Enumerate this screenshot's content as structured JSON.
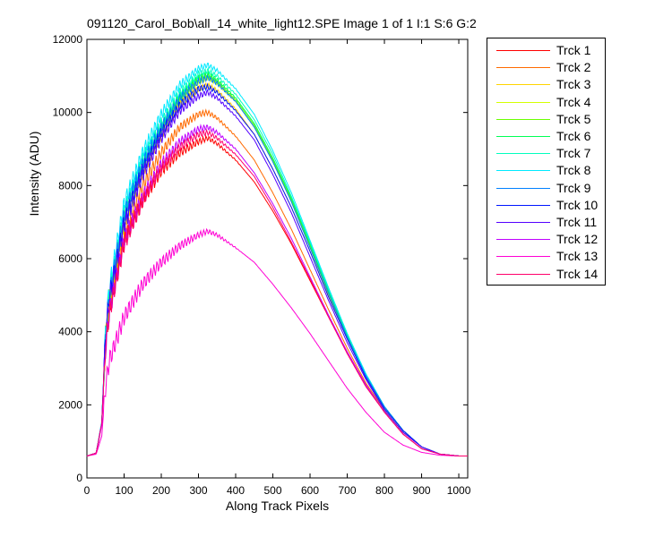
{
  "chart_data": {
    "type": "line",
    "title": "091120_Carol_Bob\\all_14_white_light12.SPE  Image 1 of 1  I:1  S:6  G:2",
    "xlabel": "Along Track Pixels",
    "ylabel": "Intensity (ADU)",
    "xlim": [
      0,
      1024
    ],
    "ylim": [
      0,
      12000
    ],
    "x_ticks": [
      "0",
      "100",
      "200",
      "300",
      "400",
      "500",
      "600",
      "700",
      "800",
      "900",
      "1000"
    ],
    "y_ticks": [
      "0",
      "2000",
      "4000",
      "6000",
      "8000",
      "10000",
      "12000"
    ],
    "legend_position": "outside-right",
    "x": [
      0,
      25,
      40,
      50,
      60,
      100,
      150,
      200,
      250,
      300,
      325,
      350,
      400,
      450,
      500,
      550,
      600,
      650,
      700,
      750,
      800,
      850,
      900,
      950,
      1000,
      1024
    ],
    "series": [
      {
        "name": "Trck 1",
        "color": "#ff0000",
        "values": [
          600,
          680,
          1500,
          3700,
          4600,
          6500,
          7600,
          8400,
          8900,
          9200,
          9300,
          9150,
          8700,
          8100,
          7300,
          6400,
          5400,
          4400,
          3450,
          2550,
          1800,
          1200,
          800,
          650,
          600,
          600
        ]
      },
      {
        "name": "Trck 2",
        "color": "#ff6a00",
        "values": [
          600,
          680,
          1500,
          3700,
          4700,
          6700,
          8000,
          8900,
          9600,
          9950,
          10000,
          9850,
          9350,
          8700,
          7800,
          6800,
          5700,
          4600,
          3550,
          2600,
          1850,
          1250,
          850,
          650,
          600,
          600
        ]
      },
      {
        "name": "Trck 3",
        "color": "#ffd400",
        "values": [
          600,
          680,
          1500,
          3800,
          4900,
          7000,
          8400,
          9400,
          10200,
          10650,
          10750,
          10600,
          10100,
          9400,
          8450,
          7400,
          6200,
          4950,
          3800,
          2750,
          1900,
          1300,
          850,
          650,
          600,
          600
        ]
      },
      {
        "name": "Trck 4",
        "color": "#d4ff00",
        "values": [
          600,
          680,
          1500,
          3850,
          4950,
          7100,
          8500,
          9500,
          10350,
          10850,
          10950,
          10800,
          10300,
          9600,
          8650,
          7550,
          6300,
          5000,
          3850,
          2800,
          1950,
          1300,
          850,
          650,
          600,
          600
        ]
      },
      {
        "name": "Trck 5",
        "color": "#6aff00",
        "values": [
          600,
          680,
          1500,
          3850,
          4950,
          7100,
          8550,
          9550,
          10400,
          10900,
          11000,
          10850,
          10350,
          9650,
          8700,
          7600,
          6350,
          5050,
          3900,
          2800,
          1950,
          1300,
          850,
          650,
          600,
          600
        ]
      },
      {
        "name": "Trck 6",
        "color": "#00ff55",
        "values": [
          600,
          680,
          1500,
          3900,
          5000,
          7200,
          8600,
          9600,
          10450,
          10950,
          11050,
          10900,
          10400,
          9700,
          8750,
          7650,
          6400,
          5100,
          3900,
          2850,
          1950,
          1300,
          850,
          650,
          600,
          600
        ]
      },
      {
        "name": "Trck 7",
        "color": "#00ffbf",
        "values": [
          600,
          680,
          1500,
          3900,
          5050,
          7250,
          8700,
          9700,
          10550,
          11050,
          11150,
          11000,
          10500,
          9800,
          8850,
          7700,
          6450,
          5150,
          3950,
          2850,
          1950,
          1300,
          850,
          650,
          600,
          600
        ]
      },
      {
        "name": "Trck 8",
        "color": "#00eaff",
        "values": [
          600,
          680,
          1550,
          4000,
          5200,
          7500,
          8900,
          9950,
          10750,
          11200,
          11300,
          11150,
          10650,
          9950,
          8950,
          7800,
          6500,
          5200,
          3950,
          2850,
          1950,
          1300,
          850,
          650,
          600,
          600
        ]
      },
      {
        "name": "Trck 9",
        "color": "#0080ff",
        "values": [
          600,
          680,
          1500,
          3900,
          5000,
          7200,
          8600,
          9600,
          10400,
          10850,
          10950,
          10800,
          10300,
          9600,
          8650,
          7550,
          6300,
          5050,
          3850,
          2800,
          1950,
          1300,
          850,
          650,
          600,
          600
        ]
      },
      {
        "name": "Trck 10",
        "color": "#0015ff",
        "values": [
          600,
          680,
          1500,
          3850,
          4950,
          7000,
          8450,
          9450,
          10200,
          10650,
          10700,
          10550,
          10050,
          9400,
          8450,
          7400,
          6200,
          4950,
          3800,
          2750,
          1900,
          1300,
          850,
          650,
          600,
          600
        ]
      },
      {
        "name": "Trck 11",
        "color": "#5500ff",
        "values": [
          600,
          680,
          1500,
          3800,
          4850,
          6900,
          8300,
          9300,
          10050,
          10450,
          10550,
          10400,
          9900,
          9250,
          8300,
          7250,
          6050,
          4850,
          3700,
          2700,
          1850,
          1250,
          850,
          650,
          600,
          600
        ]
      },
      {
        "name": "Trck 12",
        "color": "#bf00ff",
        "values": [
          600,
          680,
          1450,
          3500,
          4500,
          6500,
          7700,
          8600,
          9200,
          9550,
          9600,
          9450,
          9000,
          8350,
          7500,
          6550,
          5500,
          4450,
          3450,
          2550,
          1800,
          1200,
          800,
          650,
          600,
          600
        ]
      },
      {
        "name": "Trck 13",
        "color": "#ff00d4",
        "values": [
          600,
          650,
          1150,
          2500,
          3200,
          4400,
          5300,
          5900,
          6350,
          6650,
          6750,
          6650,
          6300,
          5900,
          5300,
          4650,
          3950,
          3200,
          2450,
          1800,
          1250,
          900,
          700,
          620,
          600,
          600
        ]
      },
      {
        "name": "Trck 14",
        "color": "#ff006a",
        "values": [
          600,
          680,
          1500,
          3600,
          4500,
          6400,
          7600,
          8500,
          9050,
          9400,
          9450,
          9300,
          8850,
          8250,
          7400,
          6450,
          5450,
          4400,
          3400,
          2500,
          1800,
          1200,
          800,
          650,
          600,
          600
        ]
      }
    ]
  }
}
